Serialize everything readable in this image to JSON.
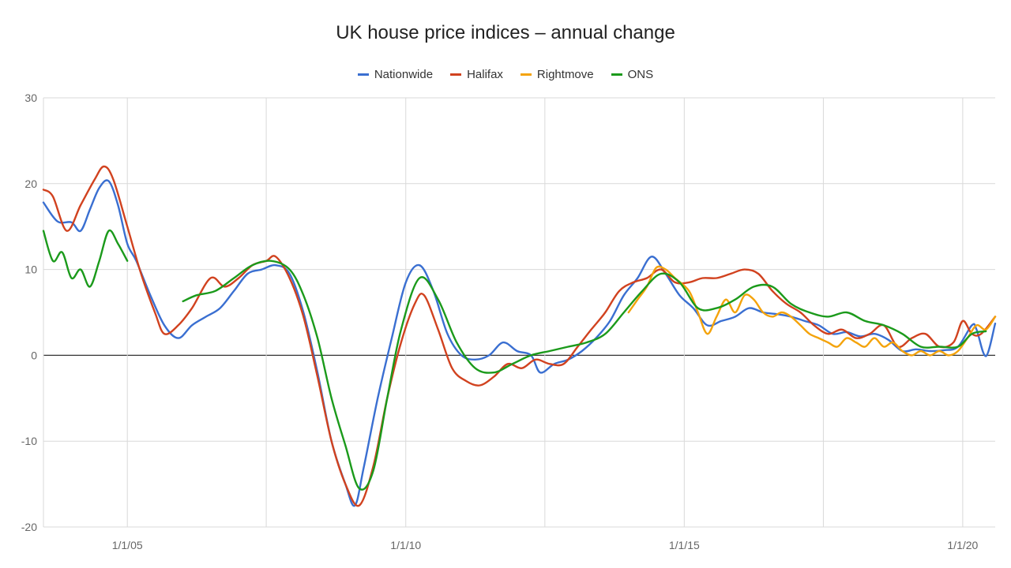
{
  "chart_data": {
    "type": "line",
    "title": "UK house price indices – annual change",
    "xlabel": "",
    "ylabel": "",
    "ylim": [
      -20,
      30
    ],
    "xlim": [
      "2003-07-01",
      "2020-08-01"
    ],
    "y_ticks": [
      -20,
      -10,
      0,
      10,
      20,
      30
    ],
    "y_tick_labels": [
      "-20",
      "-10",
      "0",
      "10",
      "20",
      "30"
    ],
    "x_ticks": [
      "2005-01-01",
      "2007-07-01",
      "2010-01-01",
      "2012-07-01",
      "2015-01-01",
      "2017-07-01",
      "2020-01-01"
    ],
    "x_tick_labels": [
      "1/1/05",
      "",
      "1/1/10",
      "",
      "1/1/15",
      "",
      "1/1/20"
    ],
    "grid": true,
    "legend_position": "top",
    "series": [
      {
        "name": "Nationwide",
        "color": "#3a6fd1",
        "points": [
          [
            "2003-07-01",
            17.8
          ],
          [
            "2003-10-01",
            15.6
          ],
          [
            "2004-01-01",
            15.5
          ],
          [
            "2004-03-01",
            14.5
          ],
          [
            "2004-05-01",
            17.0
          ],
          [
            "2004-07-01",
            19.5
          ],
          [
            "2004-09-01",
            20.3
          ],
          [
            "2004-11-01",
            17.5
          ],
          [
            "2005-01-01",
            13.0
          ],
          [
            "2005-03-01",
            11.0
          ],
          [
            "2005-06-01",
            7.0
          ],
          [
            "2005-09-01",
            3.5
          ],
          [
            "2005-12-01",
            2.0
          ],
          [
            "2006-03-01",
            3.5
          ],
          [
            "2006-06-01",
            4.5
          ],
          [
            "2006-09-01",
            5.5
          ],
          [
            "2006-12-01",
            7.5
          ],
          [
            "2007-03-01",
            9.5
          ],
          [
            "2007-06-01",
            10.0
          ],
          [
            "2007-09-01",
            10.5
          ],
          [
            "2007-12-01",
            9.5
          ],
          [
            "2008-03-01",
            5.0
          ],
          [
            "2008-06-01",
            -2.0
          ],
          [
            "2008-09-01",
            -10.0
          ],
          [
            "2008-12-01",
            -15.0
          ],
          [
            "2009-02-01",
            -17.5
          ],
          [
            "2009-04-01",
            -13.0
          ],
          [
            "2009-07-01",
            -5.0
          ],
          [
            "2009-10-01",
            2.0
          ],
          [
            "2010-01-01",
            8.5
          ],
          [
            "2010-04-01",
            10.5
          ],
          [
            "2010-07-01",
            7.5
          ],
          [
            "2010-10-01",
            2.5
          ],
          [
            "2011-01-01",
            0.0
          ],
          [
            "2011-04-01",
            -0.5
          ],
          [
            "2011-07-01",
            0.0
          ],
          [
            "2011-10-01",
            1.5
          ],
          [
            "2012-01-01",
            0.5
          ],
          [
            "2012-04-01",
            0.0
          ],
          [
            "2012-06-01",
            -2.0
          ],
          [
            "2012-09-01",
            -1.0
          ],
          [
            "2012-12-01",
            -0.5
          ],
          [
            "2013-03-01",
            0.5
          ],
          [
            "2013-06-01",
            2.0
          ],
          [
            "2013-09-01",
            4.0
          ],
          [
            "2013-12-01",
            7.0
          ],
          [
            "2014-03-01",
            9.0
          ],
          [
            "2014-06-01",
            11.5
          ],
          [
            "2014-09-01",
            9.5
          ],
          [
            "2014-12-01",
            7.0
          ],
          [
            "2015-03-01",
            5.5
          ],
          [
            "2015-06-01",
            3.5
          ],
          [
            "2015-09-01",
            4.0
          ],
          [
            "2015-12-01",
            4.5
          ],
          [
            "2016-03-01",
            5.5
          ],
          [
            "2016-06-01",
            5.0
          ],
          [
            "2016-09-01",
            4.8
          ],
          [
            "2016-12-01",
            4.5
          ],
          [
            "2017-03-01",
            4.0
          ],
          [
            "2017-06-01",
            3.5
          ],
          [
            "2017-09-01",
            2.5
          ],
          [
            "2017-12-01",
            2.7
          ],
          [
            "2018-03-01",
            2.2
          ],
          [
            "2018-06-01",
            2.5
          ],
          [
            "2018-09-01",
            1.8
          ],
          [
            "2018-12-01",
            0.5
          ],
          [
            "2019-03-01",
            0.7
          ],
          [
            "2019-06-01",
            0.5
          ],
          [
            "2019-09-01",
            0.6
          ],
          [
            "2019-12-01",
            1.0
          ],
          [
            "2020-03-01",
            3.5
          ],
          [
            "2020-04-01",
            3.0
          ],
          [
            "2020-06-01",
            -0.1
          ],
          [
            "2020-08-01",
            3.7
          ]
        ]
      },
      {
        "name": "Halifax",
        "color": "#d1421f",
        "points": [
          [
            "2003-07-01",
            19.3
          ],
          [
            "2003-09-01",
            18.5
          ],
          [
            "2003-12-01",
            14.5
          ],
          [
            "2004-03-01",
            17.5
          ],
          [
            "2004-06-01",
            20.5
          ],
          [
            "2004-08-01",
            22.0
          ],
          [
            "2004-10-01",
            20.5
          ],
          [
            "2005-01-01",
            15.0
          ],
          [
            "2005-04-01",
            9.5
          ],
          [
            "2005-07-01",
            5.0
          ],
          [
            "2005-09-01",
            2.5
          ],
          [
            "2005-12-01",
            3.5
          ],
          [
            "2006-03-01",
            5.5
          ],
          [
            "2006-07-01",
            9.0
          ],
          [
            "2006-10-01",
            8.0
          ],
          [
            "2007-01-01",
            9.0
          ],
          [
            "2007-04-01",
            10.5
          ],
          [
            "2007-07-01",
            11.0
          ],
          [
            "2007-09-01",
            11.5
          ],
          [
            "2007-12-01",
            9.0
          ],
          [
            "2008-03-01",
            4.5
          ],
          [
            "2008-06-01",
            -2.5
          ],
          [
            "2008-09-01",
            -10.0
          ],
          [
            "2008-12-01",
            -15.0
          ],
          [
            "2009-03-01",
            -17.5
          ],
          [
            "2009-06-01",
            -13.0
          ],
          [
            "2009-09-01",
            -5.0
          ],
          [
            "2009-12-01",
            1.5
          ],
          [
            "2010-03-01",
            6.0
          ],
          [
            "2010-05-01",
            7.0
          ],
          [
            "2010-08-01",
            3.0
          ],
          [
            "2010-11-01",
            -1.5
          ],
          [
            "2011-02-01",
            -3.0
          ],
          [
            "2011-05-01",
            -3.5
          ],
          [
            "2011-08-01",
            -2.5
          ],
          [
            "2011-11-01",
            -1.0
          ],
          [
            "2012-02-01",
            -1.5
          ],
          [
            "2012-05-01",
            -0.5
          ],
          [
            "2012-08-01",
            -1.0
          ],
          [
            "2012-11-01",
            -1.0
          ],
          [
            "2013-02-01",
            1.0
          ],
          [
            "2013-05-01",
            3.0
          ],
          [
            "2013-08-01",
            5.0
          ],
          [
            "2013-11-01",
            7.5
          ],
          [
            "2014-02-01",
            8.5
          ],
          [
            "2014-05-01",
            9.0
          ],
          [
            "2014-08-01",
            10.0
          ],
          [
            "2014-11-01",
            8.5
          ],
          [
            "2015-02-01",
            8.5
          ],
          [
            "2015-05-01",
            9.0
          ],
          [
            "2015-08-01",
            9.0
          ],
          [
            "2015-11-01",
            9.5
          ],
          [
            "2016-02-01",
            10.0
          ],
          [
            "2016-05-01",
            9.5
          ],
          [
            "2016-08-01",
            7.5
          ],
          [
            "2016-11-01",
            6.0
          ],
          [
            "2017-02-01",
            5.0
          ],
          [
            "2017-05-01",
            3.5
          ],
          [
            "2017-08-01",
            2.5
          ],
          [
            "2017-11-01",
            3.0
          ],
          [
            "2018-02-01",
            2.0
          ],
          [
            "2018-05-01",
            2.5
          ],
          [
            "2018-08-01",
            3.5
          ],
          [
            "2018-11-01",
            1.0
          ],
          [
            "2019-02-01",
            2.0
          ],
          [
            "2019-05-01",
            2.5
          ],
          [
            "2019-08-01",
            1.0
          ],
          [
            "2019-11-01",
            1.5
          ],
          [
            "2020-01-01",
            4.0
          ],
          [
            "2020-03-01",
            2.5
          ],
          [
            "2020-05-01",
            2.5
          ],
          [
            "2020-08-01",
            4.5
          ]
        ]
      },
      {
        "name": "Rightmove",
        "color": "#f4a30b",
        "points": [
          [
            "2014-01-01",
            5.0
          ],
          [
            "2014-03-01",
            6.5
          ],
          [
            "2014-05-01",
            8.0
          ],
          [
            "2014-07-01",
            10.2
          ],
          [
            "2014-09-01",
            10.0
          ],
          [
            "2014-11-01",
            9.0
          ],
          [
            "2015-02-01",
            7.5
          ],
          [
            "2015-04-01",
            5.0
          ],
          [
            "2015-06-01",
            2.5
          ],
          [
            "2015-08-01",
            4.5
          ],
          [
            "2015-10-01",
            6.5
          ],
          [
            "2015-12-01",
            5.0
          ],
          [
            "2016-02-01",
            7.0
          ],
          [
            "2016-04-01",
            6.5
          ],
          [
            "2016-06-01",
            5.0
          ],
          [
            "2016-08-01",
            4.5
          ],
          [
            "2016-10-01",
            5.0
          ],
          [
            "2016-12-01",
            4.5
          ],
          [
            "2017-02-01",
            3.5
          ],
          [
            "2017-04-01",
            2.5
          ],
          [
            "2017-06-01",
            2.0
          ],
          [
            "2017-08-01",
            1.5
          ],
          [
            "2017-10-01",
            1.0
          ],
          [
            "2017-12-01",
            2.0
          ],
          [
            "2018-02-01",
            1.5
          ],
          [
            "2018-04-01",
            1.0
          ],
          [
            "2018-06-01",
            2.0
          ],
          [
            "2018-08-01",
            1.0
          ],
          [
            "2018-10-01",
            1.5
          ],
          [
            "2018-12-01",
            0.5
          ],
          [
            "2019-02-01",
            0.0
          ],
          [
            "2019-04-01",
            0.5
          ],
          [
            "2019-06-01",
            0.0
          ],
          [
            "2019-08-01",
            0.5
          ],
          [
            "2019-10-01",
            0.0
          ],
          [
            "2019-12-01",
            0.5
          ],
          [
            "2020-02-01",
            2.0
          ],
          [
            "2020-04-01",
            3.5
          ],
          [
            "2020-06-01",
            3.0
          ],
          [
            "2020-08-01",
            4.5
          ]
        ]
      },
      {
        "name": "ONS",
        "color": "#1b9a1b",
        "points": [
          [
            "2003-07-01",
            14.5
          ],
          [
            "2003-09-01",
            11.0
          ],
          [
            "2003-11-01",
            12.0
          ],
          [
            "2004-01-01",
            9.0
          ],
          [
            "2004-03-01",
            10.0
          ],
          [
            "2004-05-01",
            8.0
          ],
          [
            "2004-07-01",
            11.0
          ],
          [
            "2004-09-01",
            14.5
          ],
          [
            "2004-11-01",
            13.0
          ],
          [
            "2005-01-01",
            11.0
          ]
        ]
      },
      {
        "name": "ONS",
        "color": "#1b9a1b",
        "points": [
          [
            "2006-01-01",
            6.3
          ],
          [
            "2006-04-01",
            7.0
          ],
          [
            "2006-08-01",
            7.5
          ],
          [
            "2006-12-01",
            9.0
          ],
          [
            "2007-04-01",
            10.5
          ],
          [
            "2007-08-01",
            11.0
          ],
          [
            "2007-12-01",
            10.0
          ],
          [
            "2008-03-01",
            7.0
          ],
          [
            "2008-06-01",
            2.0
          ],
          [
            "2008-09-01",
            -5.0
          ],
          [
            "2008-12-01",
            -10.5
          ],
          [
            "2009-03-01",
            -15.5
          ],
          [
            "2009-06-01",
            -13.5
          ],
          [
            "2009-09-01",
            -5.0
          ],
          [
            "2009-12-01",
            3.0
          ],
          [
            "2010-04-01",
            9.0
          ],
          [
            "2010-08-01",
            6.5
          ],
          [
            "2010-12-01",
            1.5
          ],
          [
            "2011-04-01",
            -1.5
          ],
          [
            "2011-08-01",
            -2.0
          ],
          [
            "2011-12-01",
            -1.0
          ],
          [
            "2012-04-01",
            0.0
          ],
          [
            "2012-08-01",
            0.5
          ],
          [
            "2012-12-01",
            1.0
          ],
          [
            "2013-04-01",
            1.5
          ],
          [
            "2013-08-01",
            2.5
          ],
          [
            "2013-12-01",
            5.0
          ],
          [
            "2014-04-01",
            7.5
          ],
          [
            "2014-08-01",
            9.5
          ],
          [
            "2014-12-01",
            8.5
          ],
          [
            "2015-04-01",
            5.5
          ],
          [
            "2015-08-01",
            5.5
          ],
          [
            "2015-12-01",
            6.5
          ],
          [
            "2016-04-01",
            8.0
          ],
          [
            "2016-08-01",
            8.0
          ],
          [
            "2016-12-01",
            6.0
          ],
          [
            "2017-04-01",
            5.0
          ],
          [
            "2017-08-01",
            4.5
          ],
          [
            "2017-12-01",
            5.0
          ],
          [
            "2018-04-01",
            4.0
          ],
          [
            "2018-08-01",
            3.5
          ],
          [
            "2018-12-01",
            2.5
          ],
          [
            "2019-04-01",
            1.0
          ],
          [
            "2019-08-01",
            1.0
          ],
          [
            "2019-12-01",
            1.0
          ],
          [
            "2020-03-01",
            2.5
          ],
          [
            "2020-06-01",
            2.8
          ]
        ]
      }
    ]
  }
}
